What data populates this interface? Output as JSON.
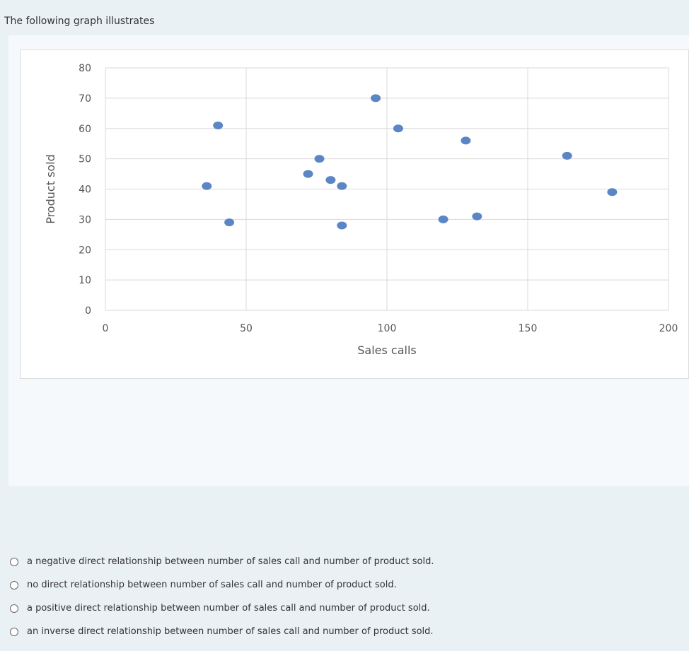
{
  "question": {
    "text": "The following graph illustrates"
  },
  "chart_data": {
    "type": "scatter",
    "xlabel": "Sales calls",
    "ylabel": "Product sold",
    "xlim": [
      0,
      200
    ],
    "ylim": [
      0,
      80
    ],
    "x_ticks": [
      "0",
      "50",
      "100",
      "150",
      "200"
    ],
    "y_ticks": [
      "0",
      "10",
      "20",
      "30",
      "40",
      "50",
      "60",
      "70",
      "80"
    ],
    "grid": true,
    "marker_color": "#5b86c6",
    "points": [
      {
        "x": 36,
        "y": 41
      },
      {
        "x": 40,
        "y": 61
      },
      {
        "x": 44,
        "y": 29
      },
      {
        "x": 72,
        "y": 45
      },
      {
        "x": 76,
        "y": 50
      },
      {
        "x": 80,
        "y": 43
      },
      {
        "x": 84,
        "y": 41
      },
      {
        "x": 84,
        "y": 28
      },
      {
        "x": 96,
        "y": 70
      },
      {
        "x": 104,
        "y": 60
      },
      {
        "x": 120,
        "y": 30
      },
      {
        "x": 128,
        "y": 56
      },
      {
        "x": 132,
        "y": 31
      },
      {
        "x": 164,
        "y": 51
      },
      {
        "x": 180,
        "y": 39
      }
    ]
  },
  "options": [
    {
      "label": "a negative direct relationship between number of sales call and number of product sold."
    },
    {
      "label": "no direct relationship between number of sales call and number of product sold."
    },
    {
      "label": "a positive direct relationship between number of sales call and number of product sold."
    },
    {
      "label": "an inverse direct relationship between number of sales call and number of product sold."
    }
  ]
}
